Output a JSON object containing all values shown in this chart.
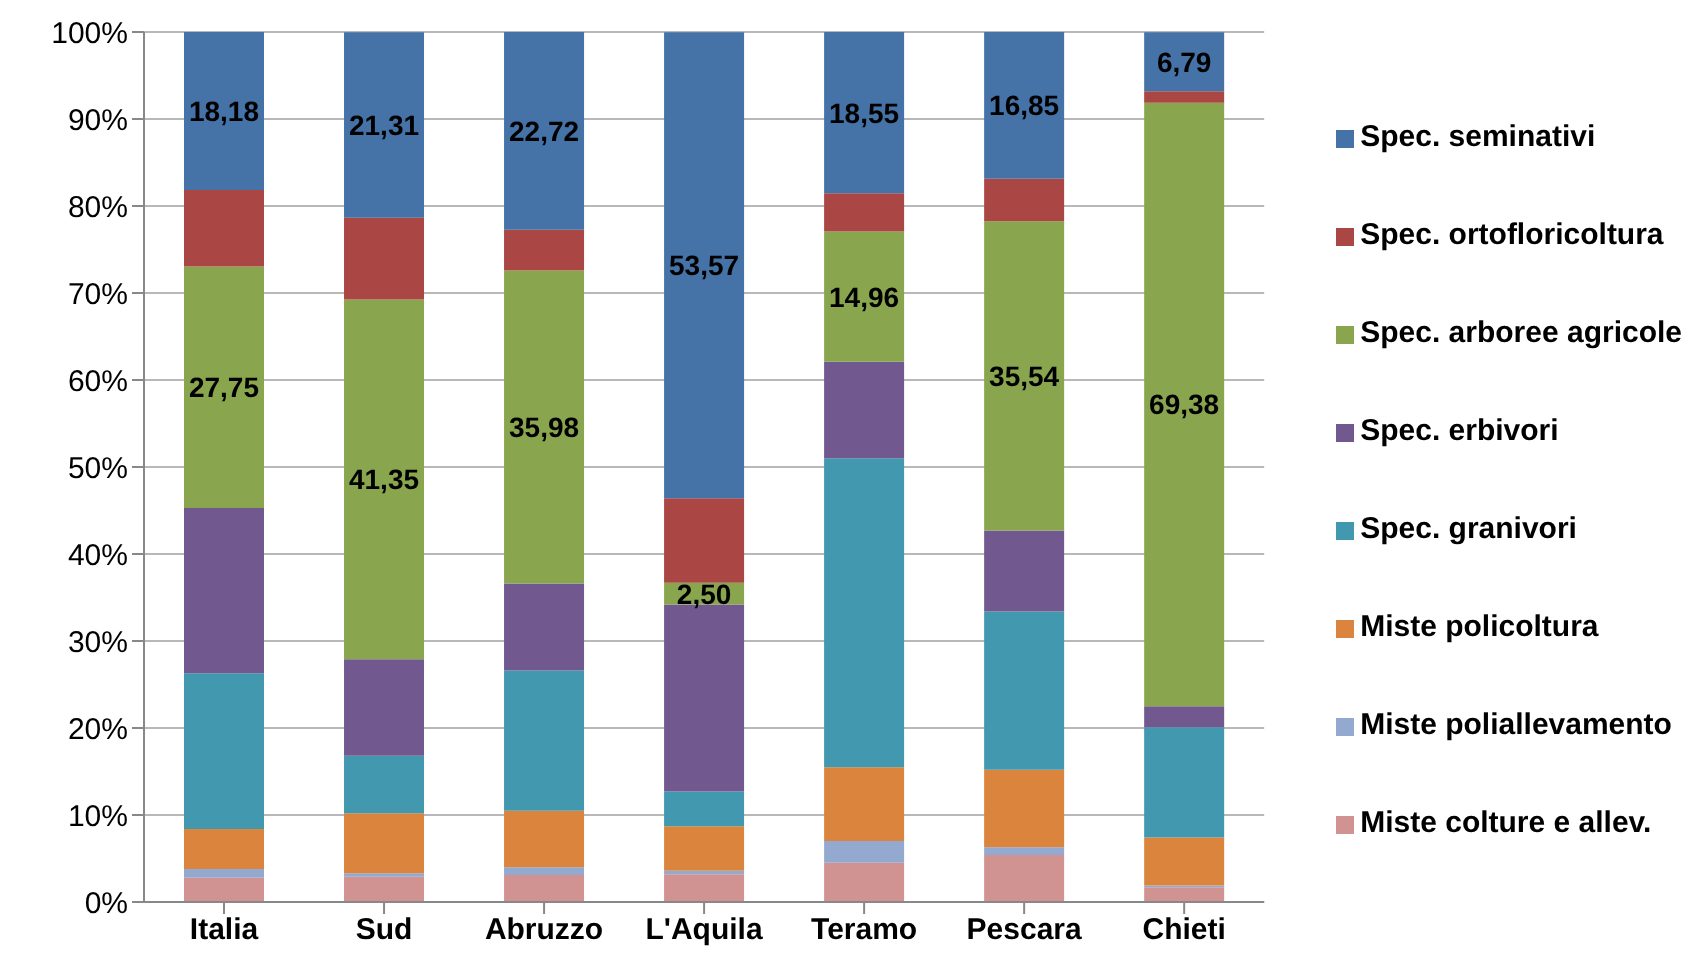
{
  "chart_data": {
    "type": "bar",
    "stacked": true,
    "categories": [
      "Italia",
      "Sud",
      "Abruzzo",
      "L'Aquila",
      "Teramo",
      "Pescara",
      "Chieti"
    ],
    "series": [
      {
        "name": "Miste colture e allev.",
        "color": "#d19392",
        "values": [
          2.8,
          2.9,
          3.1,
          3.2,
          4.5,
          5.4,
          1.7
        ]
      },
      {
        "name": "Miste poliallevamento",
        "color": "#93a9cf",
        "values": [
          1.0,
          0.4,
          0.9,
          0.4,
          2.5,
          0.9,
          0.2
        ]
      },
      {
        "name": "Miste policoltura",
        "color": "#db843d",
        "values": [
          4.6,
          6.9,
          6.5,
          5.1,
          8.5,
          8.9,
          5.5
        ]
      },
      {
        "name": "Spec. granivori",
        "color": "#4198af",
        "values": [
          17.9,
          6.6,
          16.1,
          4.0,
          35.5,
          18.2,
          12.7
        ]
      },
      {
        "name": "Spec. erbivori",
        "color": "#71588f",
        "values": [
          19.0,
          11.1,
          10.0,
          21.5,
          11.1,
          9.3,
          2.4
        ]
      },
      {
        "name": "Spec. arboree agricole",
        "color": "#89a54e",
        "values": [
          27.75,
          41.35,
          35.98,
          2.5,
          14.96,
          35.54,
          69.38
        ],
        "value_labels": [
          "27,75",
          "41,35",
          "35,98",
          "2,50",
          "14,96",
          "35,54",
          "69,38"
        ]
      },
      {
        "name": "Spec. ortofloricoltura",
        "color": "#aa4643",
        "values": [
          8.8,
          9.4,
          4.7,
          9.7,
          4.4,
          4.9,
          1.3
        ]
      },
      {
        "name": "Spec. seminativi",
        "color": "#4572a7",
        "values": [
          18.18,
          21.31,
          22.72,
          53.57,
          18.55,
          16.85,
          6.79
        ],
        "value_labels": [
          "18,18",
          "21,31",
          "22,72",
          "53,57",
          "18,55",
          "16,85",
          "6,79"
        ]
      }
    ],
    "ylim": [
      0,
      100
    ],
    "yticks": [
      {
        "value": 0,
        "label": "0%"
      },
      {
        "value": 10,
        "label": "10%"
      },
      {
        "value": 20,
        "label": "20%"
      },
      {
        "value": 30,
        "label": "30%"
      },
      {
        "value": 40,
        "label": "40%"
      },
      {
        "value": 50,
        "label": "50%"
      },
      {
        "value": 60,
        "label": "60%"
      },
      {
        "value": 70,
        "label": "70%"
      },
      {
        "value": 80,
        "label": "80%"
      },
      {
        "value": 90,
        "label": "90%"
      },
      {
        "value": 100,
        "label": "100%"
      }
    ],
    "grid": "y",
    "legend": "right"
  }
}
